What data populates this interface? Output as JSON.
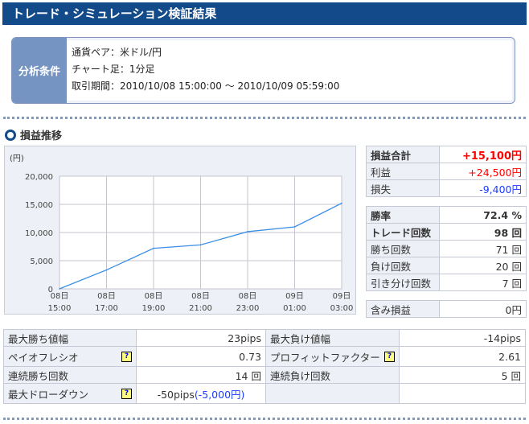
{
  "title": "トレード・シミュレーション検証結果",
  "conditions": {
    "label": "分析条件",
    "lines": [
      "通貨ペア：米ドル/円",
      "チャート足：1分足",
      "取引期間：2010/10/08 15:00:00 〜 2010/10/09 05:59:00"
    ]
  },
  "section_title": "損益推移",
  "chart_data": {
    "type": "line",
    "ylabel": "(円)",
    "ylim": [
      0,
      20000
    ],
    "yticks": [
      "0",
      "5,000",
      "10,000",
      "15,000",
      "20,000"
    ],
    "grid": true,
    "categories": [
      [
        "08日",
        "15:00"
      ],
      [
        "08日",
        "17:00"
      ],
      [
        "08日",
        "19:00"
      ],
      [
        "08日",
        "21:00"
      ],
      [
        "08日",
        "23:00"
      ],
      [
        "09日",
        "01:00"
      ],
      [
        "09日",
        "03:00"
      ]
    ],
    "values": [
      0,
      3350,
      7200,
      7800,
      10150,
      11000,
      15200
    ],
    "color": "#3a8ee6"
  },
  "summary": {
    "pl": [
      {
        "label": "損益合計",
        "value": "+15,100円"
      },
      {
        "label": "利益",
        "value": "+24,500円"
      },
      {
        "label": "損失",
        "value": "-9,400円"
      }
    ],
    "stats": [
      {
        "label": "勝率",
        "value": "72.4 %"
      },
      {
        "label": "トレード回数",
        "value": "98 回"
      },
      {
        "label": "勝ち回数",
        "value": "71 回"
      },
      {
        "label": "負け回数",
        "value": "20 回"
      },
      {
        "label": "引き分け回数",
        "value": "7 回"
      }
    ],
    "unrealized": {
      "label": "含み損益",
      "value": "0円"
    }
  },
  "details": [
    [
      {
        "label": "最大勝ち値幅",
        "value": "23pips"
      },
      {
        "label": "最大負け値幅",
        "value": "-14pips"
      }
    ],
    [
      {
        "label": "ペイオフレシオ",
        "value": "0.73",
        "help": "?"
      },
      {
        "label": "プロフィットファクター",
        "value": "2.61",
        "help": "?"
      }
    ],
    [
      {
        "label": "連続勝ち回数",
        "value": "14 回"
      },
      {
        "label": "連続負け回数",
        "value": "5 回"
      }
    ],
    [
      {
        "label": "最大ドローダウン",
        "value": "-50pips",
        "value2": "(-5,000円)",
        "help": "?"
      }
    ]
  ]
}
